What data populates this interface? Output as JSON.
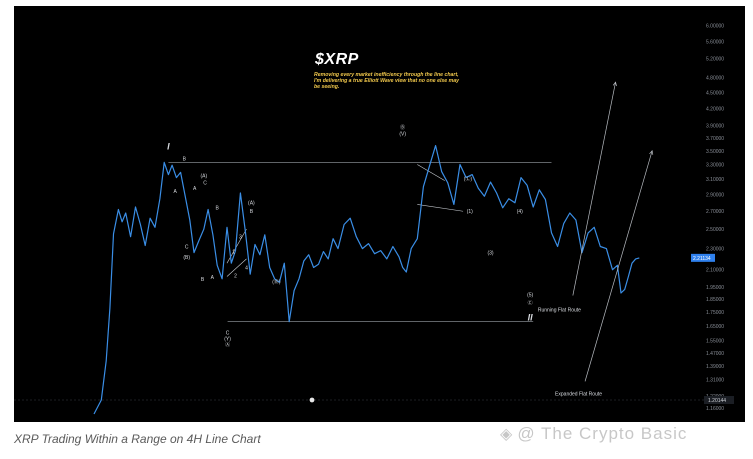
{
  "figure": {
    "title": "$XRP",
    "annotation": "Removing every market inefficiency through the line chart, I'm delivering a true Elliott Wave view that no one else may be seeing.",
    "caption": "XRP Trading Within a Range on 4H Line Chart",
    "watermark": "@ The Crypto Basic",
    "colors": {
      "background": "#000000",
      "price_line": "#3a8ee6",
      "annotation": "#f2c94c",
      "range_lines": "#9aa0a6",
      "price_tag": "#2f80ed"
    }
  },
  "chart_data": {
    "type": "line",
    "title": "$XRP",
    "xlabel": "",
    "ylabel": "",
    "y_scale": "log",
    "ylim": [
      1.13,
      6.3
    ],
    "grid": false,
    "current_price": "2.21",
    "price_tag": "2.21134",
    "crosshair_label": "1.20144",
    "y_ticks": [
      {
        "label": "6.00000",
        "value": 6.0
      },
      {
        "label": "5.60000",
        "value": 5.6
      },
      {
        "label": "5.20000",
        "value": 5.2
      },
      {
        "label": "4.80000",
        "value": 4.8
      },
      {
        "label": "4.50000",
        "value": 4.5
      },
      {
        "label": "4.20000",
        "value": 4.2
      },
      {
        "label": "3.90000",
        "value": 3.9
      },
      {
        "label": "3.70000",
        "value": 3.7
      },
      {
        "label": "3.50000",
        "value": 3.5
      },
      {
        "label": "3.30000",
        "value": 3.3
      },
      {
        "label": "3.10000",
        "value": 3.1
      },
      {
        "label": "2.90000",
        "value": 2.9
      },
      {
        "label": "2.70000",
        "value": 2.7
      },
      {
        "label": "2.50000",
        "value": 2.5
      },
      {
        "label": "2.30000",
        "value": 2.3
      },
      {
        "label": "2.10000",
        "value": 2.1
      },
      {
        "label": "1.95000",
        "value": 1.95
      },
      {
        "label": "1.85000",
        "value": 1.85
      },
      {
        "label": "1.75000",
        "value": 1.75
      },
      {
        "label": "1.65000",
        "value": 1.65
      },
      {
        "label": "1.55000",
        "value": 1.55
      },
      {
        "label": "1.47000",
        "value": 1.47
      },
      {
        "label": "1.39000",
        "value": 1.39
      },
      {
        "label": "1.31000",
        "value": 1.31
      },
      {
        "label": "1.22000",
        "value": 1.22
      },
      {
        "label": "1.16000",
        "value": 1.16
      }
    ],
    "x_range": [
      0,
      100
    ],
    "series": [
      {
        "x": [
          0,
          1.2,
          2,
          2.6,
          3.2,
          4,
          4.6,
          5.2,
          6,
          6.8,
          7.6,
          8.4,
          9.2,
          10,
          10.8,
          11.5,
          12.2,
          12.8,
          13.5,
          14.2,
          15,
          15.7,
          16.4,
          17.2,
          18,
          18.7,
          19.5,
          20.2,
          21,
          21.8,
          22.5,
          23.2,
          24,
          24.8,
          25.6,
          26.4,
          27.2,
          28,
          28.8,
          29.6,
          30.4,
          31.2,
          32,
          32.8,
          33.6,
          34.4,
          35.2,
          36,
          36.8,
          37.6,
          38.4,
          39.2,
          40,
          41,
          42,
          43,
          44,
          45,
          46,
          47,
          48,
          49,
          50,
          50.6,
          51.2,
          52,
          53,
          54,
          55,
          56,
          57,
          58,
          59,
          60,
          61,
          62,
          63,
          64,
          65,
          66,
          67,
          68,
          69,
          70,
          71,
          72,
          73,
          74,
          75,
          76,
          77,
          78,
          79,
          80,
          81,
          82,
          83,
          84,
          85,
          85.8,
          86.4,
          87,
          87.6,
          88.2,
          88.8,
          89.4
        ],
        "y": [
          1.13,
          1.2,
          1.42,
          1.78,
          2.45,
          2.72,
          2.58,
          2.68,
          2.42,
          2.75,
          2.55,
          2.33,
          2.62,
          2.52,
          2.85,
          3.33,
          3.16,
          3.29,
          3.12,
          3.19,
          2.86,
          2.6,
          2.26,
          2.38,
          2.5,
          2.72,
          2.44,
          2.14,
          2.02,
          2.52,
          2.16,
          2.28,
          2.92,
          2.48,
          2.06,
          2.34,
          2.24,
          2.44,
          2.12,
          2.02,
          1.99,
          2.16,
          1.68,
          1.92,
          2.02,
          2.18,
          2.24,
          2.12,
          2.15,
          2.27,
          2.2,
          2.4,
          2.3,
          2.55,
          2.62,
          2.42,
          2.3,
          2.35,
          2.25,
          2.28,
          2.2,
          2.32,
          2.22,
          2.12,
          2.08,
          2.3,
          2.4,
          3.0,
          3.28,
          3.58,
          3.2,
          3.05,
          2.78,
          3.3,
          3.12,
          3.16,
          2.98,
          2.88,
          3.06,
          2.92,
          2.74,
          2.85,
          2.8,
          3.12,
          3.02,
          2.75,
          2.96,
          2.84,
          2.46,
          2.32,
          2.56,
          2.68,
          2.6,
          2.26,
          2.46,
          2.52,
          2.32,
          2.3,
          2.1,
          2.14,
          1.9,
          1.93,
          2.04,
          2.16,
          2.2,
          2.21
        ]
      }
    ],
    "levels": [
      {
        "name": "range-top",
        "value": 3.33
      },
      {
        "name": "range-bottom",
        "value": 1.68
      }
    ],
    "wave_labels": [
      {
        "text": "I",
        "x": 12.2,
        "y": 3.52,
        "size": "big"
      },
      {
        "text": "B",
        "x": 14.8,
        "y": 3.36
      },
      {
        "text": "A",
        "x": 13.3,
        "y": 2.92
      },
      {
        "text": "(A)",
        "x": 18.0,
        "y": 3.12
      },
      {
        "text": "A",
        "x": 16.5,
        "y": 2.96
      },
      {
        "text": "C",
        "x": 18.2,
        "y": 3.03
      },
      {
        "text": "B",
        "x": 20.2,
        "y": 2.72
      },
      {
        "text": "C",
        "x": 15.2,
        "y": 2.3
      },
      {
        "text": "(B)",
        "x": 15.2,
        "y": 2.2
      },
      {
        "text": "B",
        "x": 17.8,
        "y": 2.0
      },
      {
        "text": "A",
        "x": 19.4,
        "y": 2.02
      },
      {
        "text": "(A)",
        "x": 25.8,
        "y": 2.78
      },
      {
        "text": "B",
        "x": 25.8,
        "y": 2.68
      },
      {
        "text": "3",
        "x": 24.0,
        "y": 2.4
      },
      {
        "text": "1",
        "x": 22.9,
        "y": 2.25
      },
      {
        "text": "4",
        "x": 25.0,
        "y": 2.1
      },
      {
        "text": "2",
        "x": 23.2,
        "y": 2.03
      },
      {
        "text": "C",
        "x": 21.9,
        "y": 1.59
      },
      {
        "text": "(Y)",
        "x": 21.9,
        "y": 1.55
      },
      {
        "text": "Ⓐ",
        "x": 21.9,
        "y": 1.51
      },
      {
        "text": "(Ⓑ)",
        "x": 29.9,
        "y": 1.98
      },
      {
        "text": "Ⓑ",
        "x": 50.6,
        "y": 3.84
      },
      {
        "text": "(V)",
        "x": 50.6,
        "y": 3.74
      },
      {
        "text": "(Ⓛ)",
        "x": 61.3,
        "y": 3.08
      },
      {
        "text": "(1)",
        "x": 61.6,
        "y": 2.68
      },
      {
        "text": "(4)",
        "x": 69.8,
        "y": 2.68
      },
      {
        "text": "(3)",
        "x": 65.0,
        "y": 2.24
      },
      {
        "text": "(5)",
        "x": 71.5,
        "y": 1.87
      },
      {
        "text": "Ⓒ",
        "x": 71.5,
        "y": 1.81
      },
      {
        "text": "II",
        "x": 71.5,
        "y": 1.69,
        "size": "big"
      }
    ],
    "projections": [
      {
        "label": "Running Flat Route",
        "from": [
          78.5,
          1.88
        ],
        "to": [
          85.5,
          4.7
        ]
      },
      {
        "label": "Expanded Flat Route",
        "from": [
          80.5,
          1.3
        ],
        "to": [
          91.5,
          3.5
        ]
      }
    ]
  }
}
